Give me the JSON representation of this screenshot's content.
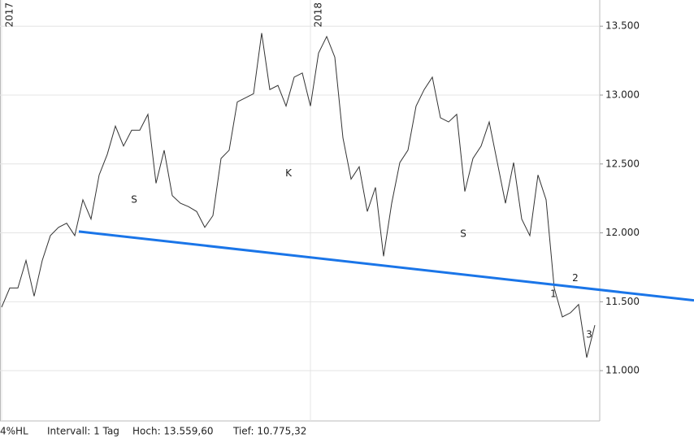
{
  "chart_data": {
    "type": "line",
    "categories": [
      "2017",
      null,
      null,
      null,
      null,
      null,
      null,
      null,
      null,
      null,
      null,
      null,
      null,
      null,
      null,
      null,
      null,
      null,
      null,
      null,
      null,
      null,
      null,
      null,
      null,
      null,
      null,
      null,
      null,
      null,
      null,
      null,
      null,
      null,
      null,
      null,
      null,
      null,
      "2018",
      null,
      null,
      null,
      null,
      null,
      null,
      null,
      null,
      null,
      null,
      null,
      null,
      null,
      null,
      null,
      null,
      null,
      null,
      null,
      null,
      null,
      null,
      null,
      null,
      null,
      null,
      null,
      null,
      null,
      null,
      null,
      null,
      null,
      null,
      null
    ],
    "series": [
      {
        "color": "#333333",
        "values": [
          11460,
          11600,
          11600,
          11800,
          11540,
          11800,
          11980,
          12040,
          12070,
          11980,
          12240,
          12100,
          12420,
          12570,
          12775,
          12630,
          12745,
          12745,
          12860,
          12360,
          12600,
          12270,
          12215,
          12190,
          12155,
          12040,
          12125,
          12540,
          12600,
          12950,
          12980,
          13010,
          13450,
          13040,
          13070,
          12920,
          13130,
          13160,
          12920,
          13305,
          13425,
          13275,
          12690,
          12390,
          12480,
          12155,
          12330,
          11830,
          12215,
          12510,
          12600,
          12920,
          13040,
          13130,
          12835,
          12805,
          12860,
          12300,
          12540,
          12630,
          12805,
          12510,
          12215,
          12510,
          12100,
          11980,
          12420,
          12240,
          11600,
          11390,
          11420,
          11480,
          11095,
          11330
        ]
      }
    ],
    "ylim": [
      10635,
      13690
    ],
    "yticks": [
      {
        "value": 11000,
        "label": "11.000"
      },
      {
        "value": 11500,
        "label": "11.500"
      },
      {
        "value": 12000,
        "label": "12.000"
      },
      {
        "value": 12500,
        "label": "12.500"
      },
      {
        "value": 13000,
        "label": "13.000"
      },
      {
        "value": 13500,
        "label": "13.500"
      }
    ],
    "grid": true,
    "trendline": {
      "color": "#1a75e8",
      "x": [
        9.5,
        85.2
      ],
      "values": [
        12010,
        11510
      ]
    },
    "annotations": [
      {
        "text": "S",
        "x": 16.3,
        "y": 12240,
        "color": "#e01010"
      },
      {
        "text": "K",
        "x": 35.3,
        "y": 12430,
        "color": "#e01010"
      },
      {
        "text": "S",
        "x": 56.8,
        "y": 11990,
        "color": "#e01010"
      },
      {
        "text": "1",
        "x": 67.9,
        "y": 11555,
        "color": "#e01010"
      },
      {
        "text": "2",
        "x": 70.6,
        "y": 11670,
        "color": "#e01010"
      },
      {
        "text": "3",
        "x": 72.3,
        "y": 11260,
        "color": "#e01010"
      }
    ],
    "footer": [
      "4%HL",
      "Intervall: 1 Tag",
      "Hoch: 13.559,60",
      "Tief: 10.775,32"
    ]
  }
}
